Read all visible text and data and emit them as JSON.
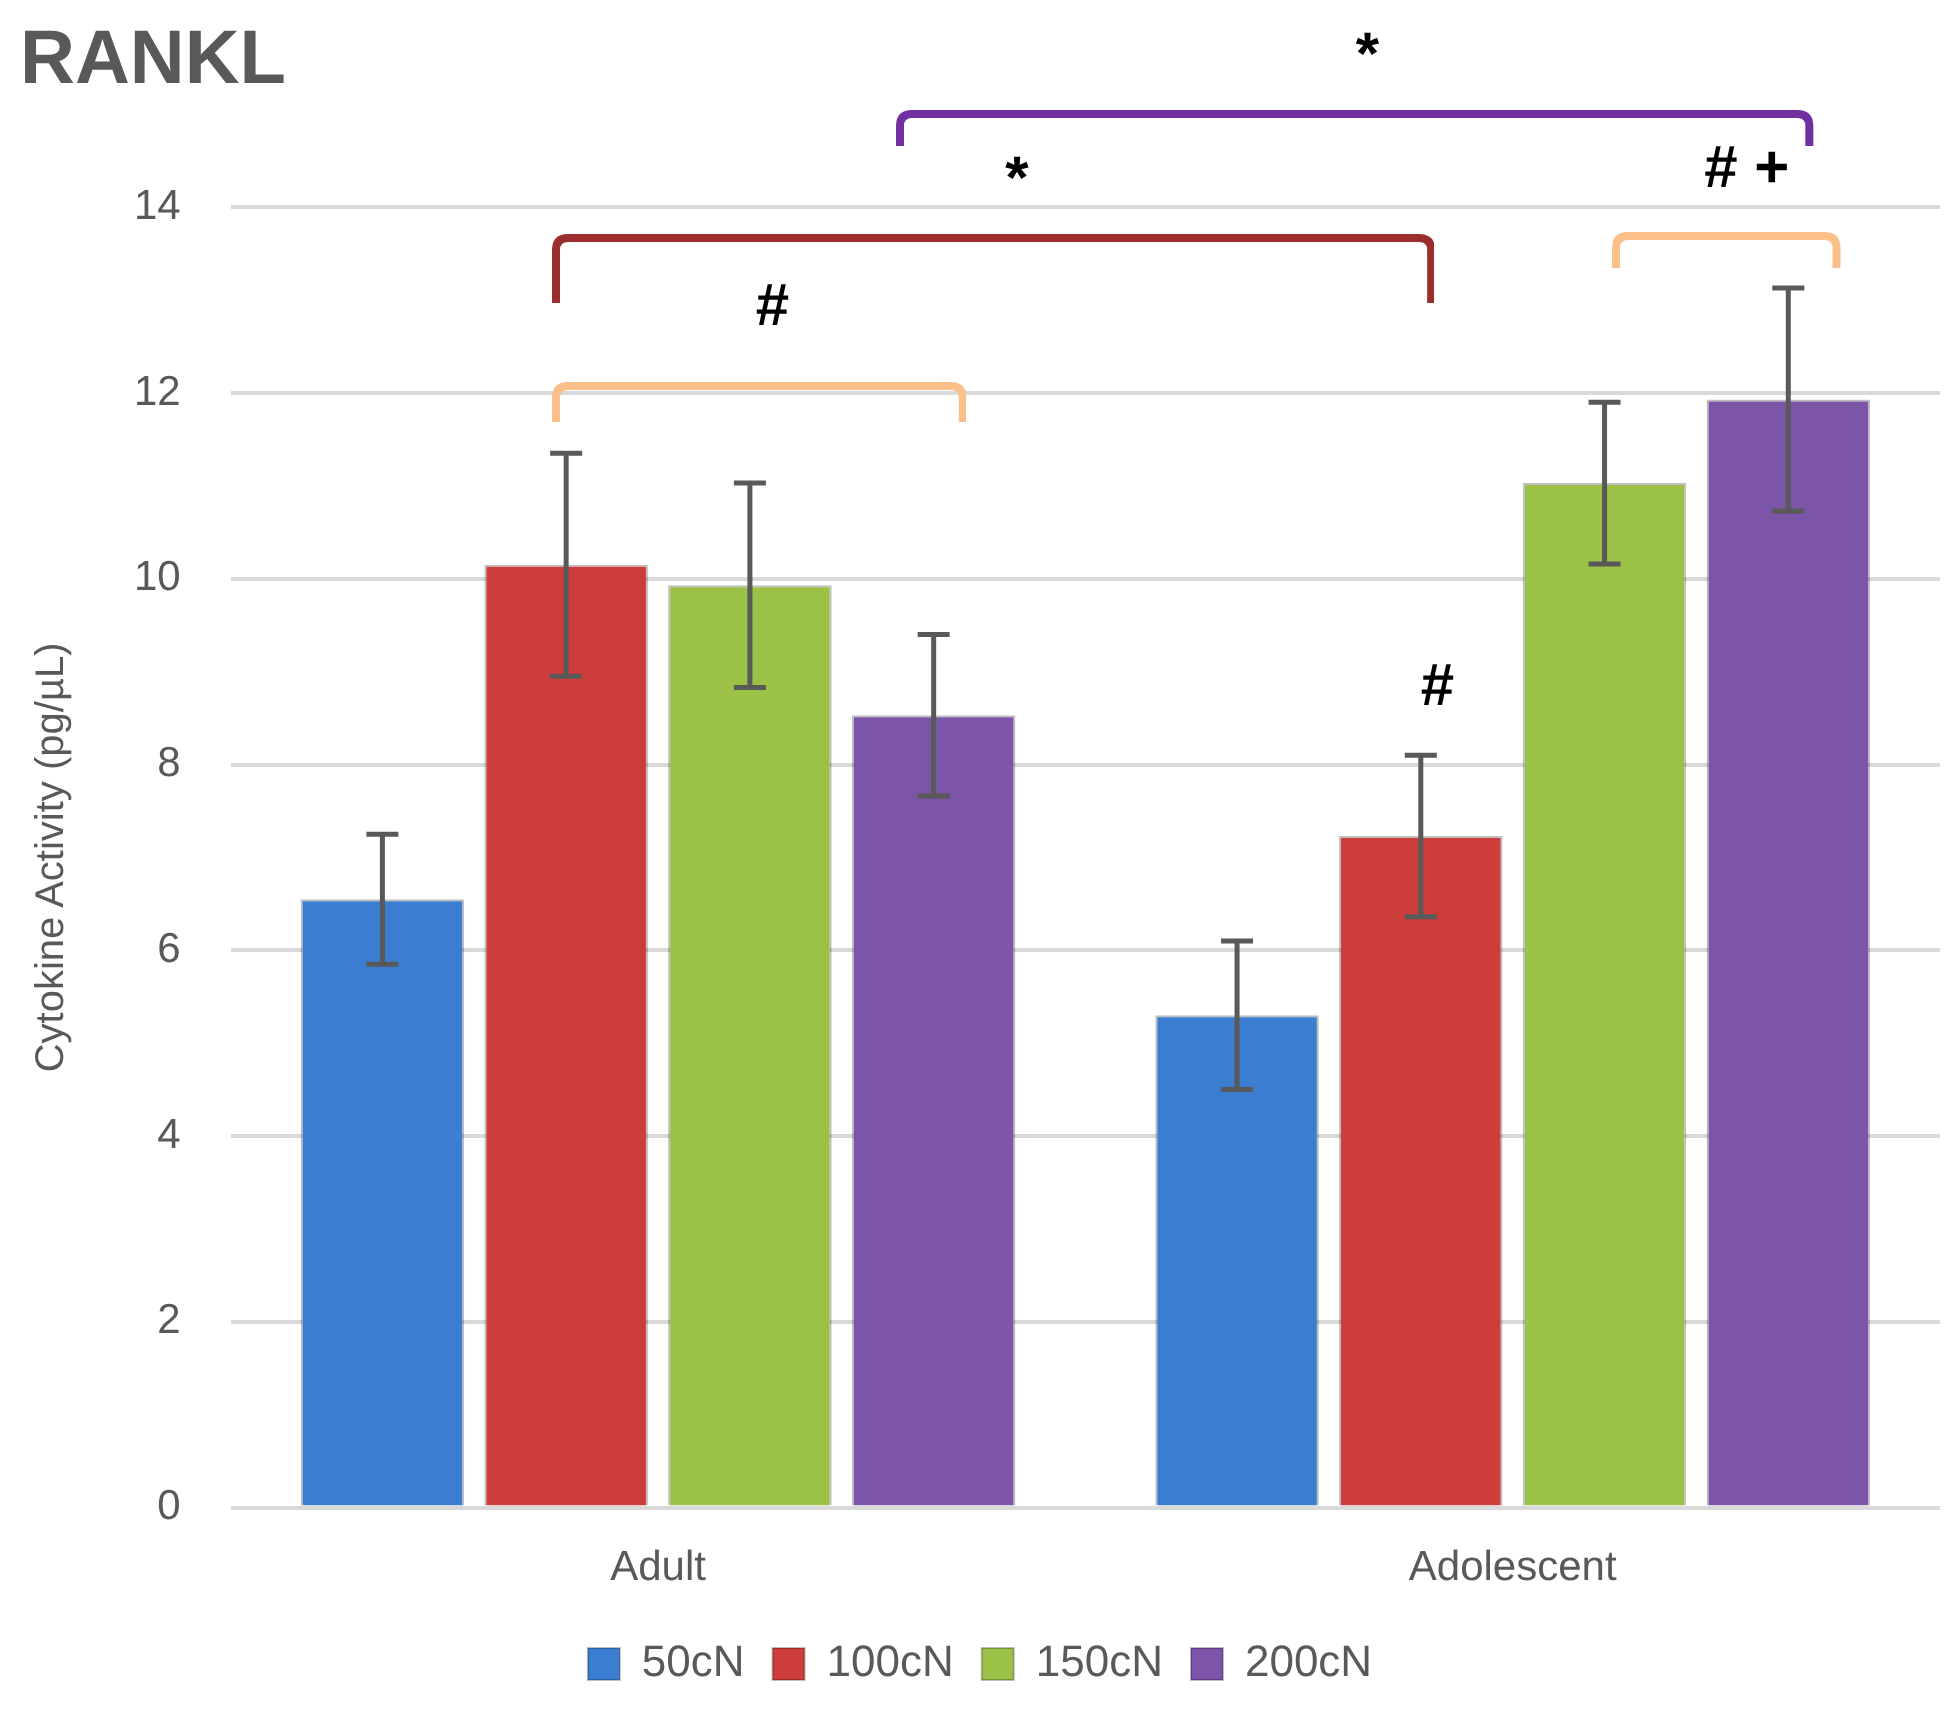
{
  "chart_data": {
    "type": "bar",
    "title": "RANKL",
    "ylabel": "Cytokine Activity (pg/µL)",
    "categories": [
      "Adult",
      "Adolescent"
    ],
    "series": [
      {
        "name": "50cN",
        "color": "#3b7dd0",
        "values": [
          6.55,
          5.3
        ],
        "errors": [
          0.7,
          0.8
        ]
      },
      {
        "name": "100cN",
        "color": "#cc3d3b",
        "values": [
          10.15,
          7.23
        ],
        "errors": [
          1.2,
          0.87
        ]
      },
      {
        "name": "150cN",
        "color": "#9bc246",
        "values": [
          9.93,
          11.03
        ],
        "errors": [
          1.1,
          0.87
        ]
      },
      {
        "name": "200cN",
        "color": "#7b55a8",
        "values": [
          8.53,
          11.93
        ],
        "errors": [
          0.87,
          1.2
        ]
      }
    ],
    "ylim": [
      0,
      14
    ],
    "yticks": [
      0,
      2,
      4,
      6,
      8,
      10,
      12,
      14
    ],
    "grid": "y",
    "legend": "bottom",
    "annotations": [
      "*",
      "# +",
      "*",
      "#",
      "#"
    ]
  }
}
